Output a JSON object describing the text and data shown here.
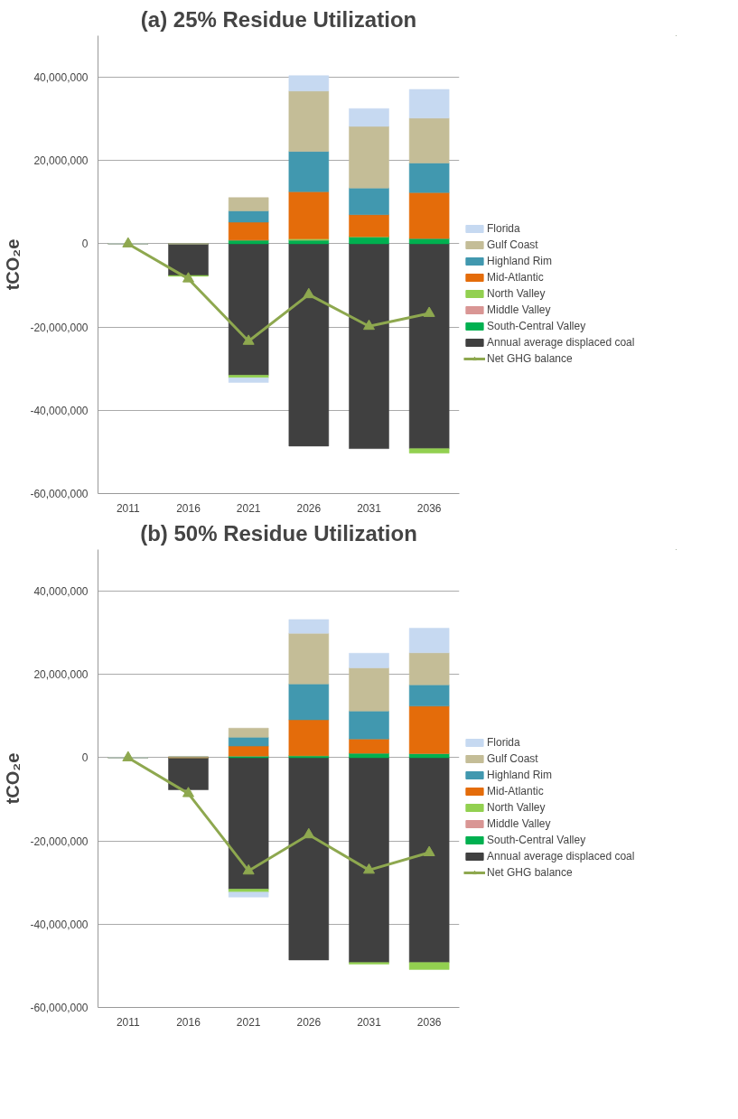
{
  "chart_data": [
    {
      "type": "bar",
      "stacked": true,
      "title": "(a) 25% Residue Utilization",
      "ylabel": "tCO₂e",
      "categories": [
        "2011",
        "2016",
        "2021",
        "2026",
        "2031",
        "2036"
      ],
      "ylim": [
        -60000000,
        50000000
      ],
      "yticks": [
        {
          "value": -60000000,
          "label": "-60,000,000"
        },
        {
          "value": -40000000,
          "label": "-40,000,000"
        },
        {
          "value": -20000000,
          "label": "-20,000,000"
        },
        {
          "value": 0,
          "label": "0"
        },
        {
          "value": 20000000,
          "label": "20,000,000"
        },
        {
          "value": 40000000,
          "label": "40,000,000"
        }
      ],
      "grid": "y",
      "legend": "right",
      "series": [
        {
          "name": "Annual average displaced coal",
          "color": "#404040",
          "values": [
            0,
            -7600000,
            -31600000,
            -48600000,
            -49200000,
            -49200000
          ]
        },
        {
          "name": "South-Central Valley",
          "color": "#00b050",
          "values": [
            0,
            0,
            900000,
            900000,
            1700000,
            1300000
          ]
        },
        {
          "name": "Middle Valley",
          "color": "#d99694",
          "values": [
            0,
            0,
            0,
            0,
            0,
            0
          ]
        },
        {
          "name": "North Valley",
          "color": "#92d050",
          "values": [
            0,
            -200000,
            -600000,
            300000,
            0,
            -1100000
          ]
        },
        {
          "name": "Mid-Atlantic",
          "color": "#e46c0a",
          "values": [
            0,
            0,
            4300000,
            11300000,
            5300000,
            11000000
          ]
        },
        {
          "name": "Highland Rim",
          "color": "#4198af",
          "values": [
            0,
            0,
            2700000,
            9700000,
            6400000,
            7100000
          ]
        },
        {
          "name": "Gulf Coast",
          "color": "#c4bd97",
          "values": [
            0,
            0,
            3200000,
            14500000,
            14800000,
            10800000
          ]
        },
        {
          "name": "Florida",
          "color": "#c6d9f1",
          "values": [
            0,
            null,
            -1100000,
            3700000,
            4300000,
            6900000
          ]
        },
        {
          "name": "Net GHG balance",
          "type": "line",
          "marker": "triangle",
          "color": "#8ea84f",
          "values": [
            0,
            -8400000,
            -23400000,
            -12200000,
            -19800000,
            -16700000
          ]
        }
      ]
    },
    {
      "type": "bar",
      "stacked": true,
      "title": "(b) 50% Residue Utilization",
      "ylabel": "tCO₂e",
      "categories": [
        "2011",
        "2016",
        "2021",
        "2026",
        "2031",
        "2036"
      ],
      "ylim": [
        -60000000,
        50000000
      ],
      "yticks": [
        {
          "value": -60000000,
          "label": "-60,000,000"
        },
        {
          "value": -40000000,
          "label": "-40,000,000"
        },
        {
          "value": -20000000,
          "label": "-20,000,000"
        },
        {
          "value": 0,
          "label": "0"
        },
        {
          "value": 20000000,
          "label": "20,000,000"
        },
        {
          "value": 40000000,
          "label": "40,000,000"
        }
      ],
      "grid": "y",
      "legend": "right",
      "series": [
        {
          "name": "Annual average displaced coal",
          "color": "#404040",
          "values": [
            0,
            -7700000,
            -31600000,
            -48600000,
            -49200000,
            -49200000
          ]
        },
        {
          "name": "South-Central Valley",
          "color": "#00b050",
          "values": [
            0,
            0,
            400000,
            500000,
            1100000,
            1000000
          ]
        },
        {
          "name": "Middle Valley",
          "color": "#d99694",
          "values": [
            0,
            0,
            0,
            0,
            0,
            0
          ]
        },
        {
          "name": "North Valley",
          "color": "#92d050",
          "values": [
            0,
            null,
            -700000,
            0,
            -400000,
            -1700000
          ]
        },
        {
          "name": "Mid-Atlantic",
          "color": "#e46c0a",
          "values": [
            0,
            200000,
            2400000,
            8600000,
            3400000,
            11400000
          ]
        },
        {
          "name": "Highland Rim",
          "color": "#4198af",
          "values": [
            0,
            0,
            2100000,
            8600000,
            6700000,
            5100000
          ]
        },
        {
          "name": "Gulf Coast",
          "color": "#c4bd97",
          "values": [
            0,
            0,
            2200000,
            12200000,
            10400000,
            7700000
          ]
        },
        {
          "name": "Florida",
          "color": "#c6d9f1",
          "values": [
            0,
            null,
            -1200000,
            3300000,
            3500000,
            5900000
          ]
        },
        {
          "name": "Net GHG balance",
          "type": "line",
          "marker": "triangle",
          "color": "#8ea84f",
          "values": [
            0,
            -8600000,
            -27200000,
            -18500000,
            -27000000,
            -22800000
          ]
        }
      ]
    }
  ]
}
